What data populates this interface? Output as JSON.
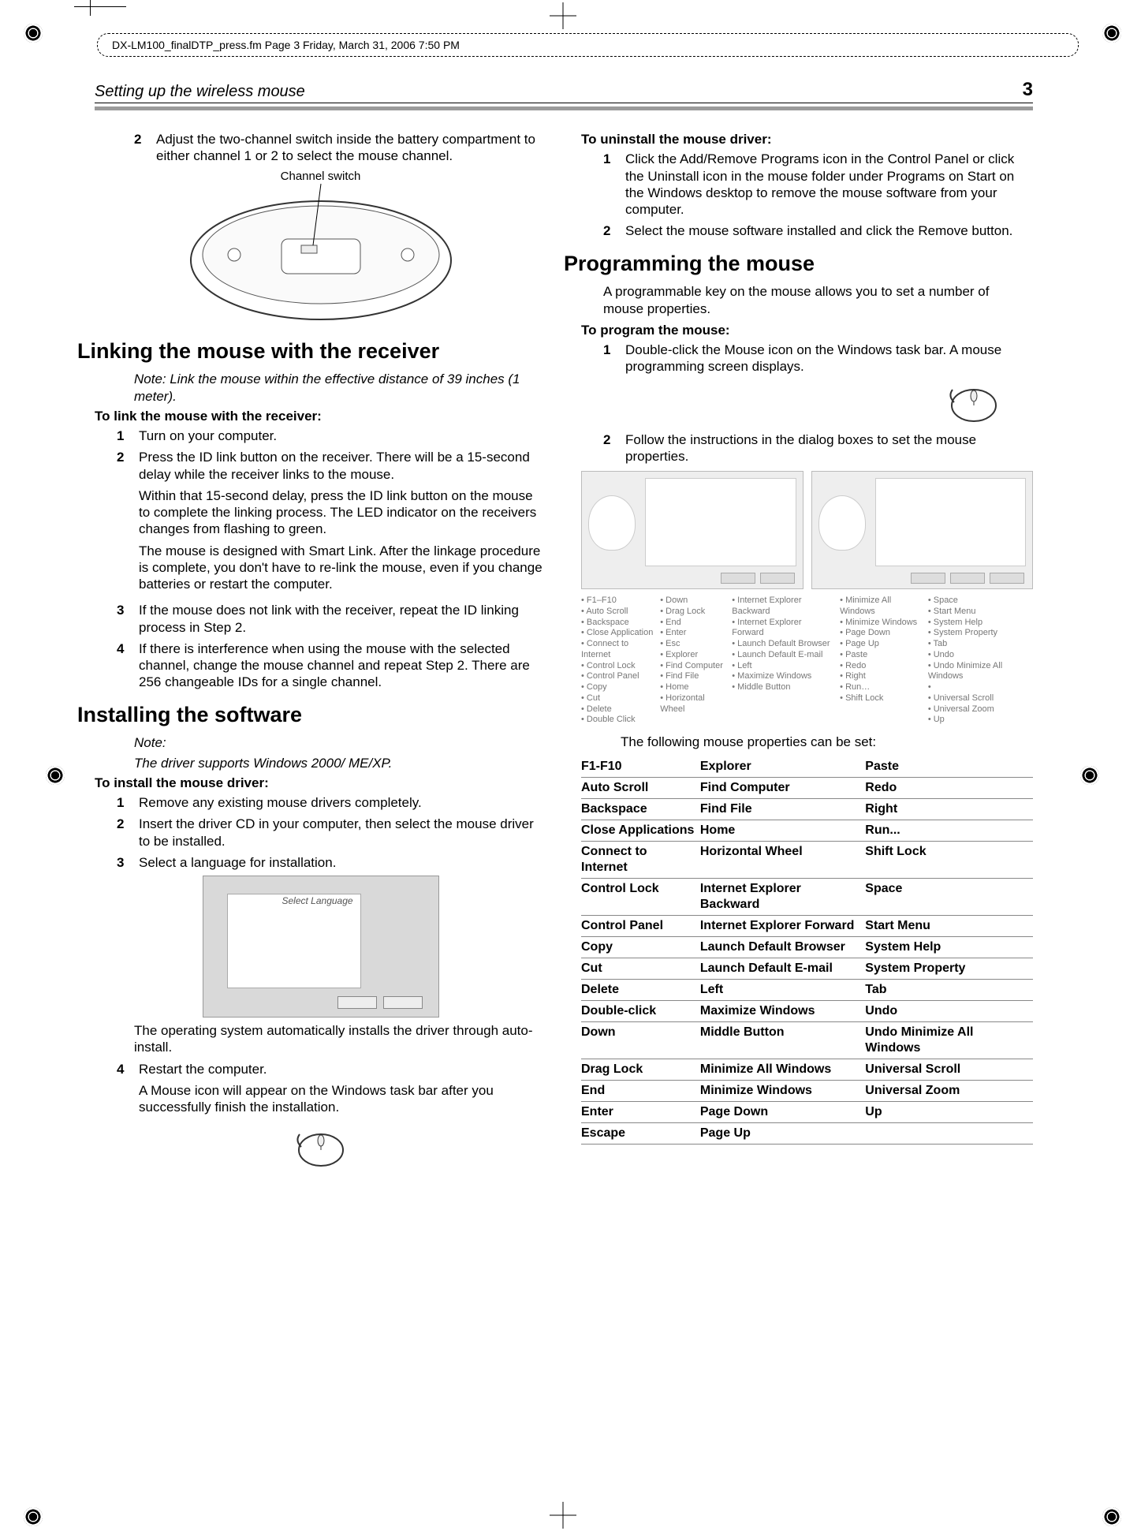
{
  "print_header": "DX-LM100_finalDTP_press.fm  Page 3  Friday, March 31, 2006  7:50 PM",
  "running_title": "Setting up the wireless mouse",
  "page_number": "3",
  "left": {
    "step2": "Adjust the two-channel switch inside the battery compartment to either channel 1 or 2 to select the mouse channel.",
    "channel_switch_label": "Channel switch",
    "h_link": "Linking the mouse with the receiver",
    "link_note": "Note: Link the mouse within the effective distance of 39 inches (1 meter).",
    "link_lead": "To link the mouse with the receiver:",
    "link_steps": {
      "1": "Turn on your computer.",
      "2a": "Press the ID link button on the receiver. There will be a 15-second delay while the receiver links to the mouse.",
      "2b": "Within that 15-second delay, press the ID link button on the mouse to complete the linking process. The LED indicator on the receivers changes from flashing to green.",
      "2c": "The mouse is designed with Smart Link. After the linkage procedure is complete, you don't have to re-link the mouse, even if you change batteries or restart the computer.",
      "3": "If the mouse does not link with the receiver, repeat the ID linking process in Step 2.",
      "4": "If there is interference when using the mouse with the selected channel, change the mouse channel and repeat Step 2. There are 256 changeable IDs for a single channel."
    },
    "h_install": "Installing the software",
    "install_note1": "Note:",
    "install_note2": "The driver supports Windows 2000/ ME/XP.",
    "install_lead": "To install the mouse driver:",
    "install_steps": {
      "1": "Remove any existing mouse drivers completely.",
      "2": "Insert the driver CD in your computer, then select the mouse driver to be installed.",
      "3": "Select a language for installation."
    },
    "install_after": "The operating system automatically installs the driver through auto-install.",
    "install_4a": "Restart the computer.",
    "install_4b": "A Mouse icon will appear on the Windows task bar after you successfully finish the installation."
  },
  "right": {
    "uninstall_lead": "To uninstall the mouse driver:",
    "uninstall_1": "Click the Add/Remove Programs icon in the Control Panel or click the Uninstall icon in the mouse folder under Programs on Start on the Windows desktop to remove the mouse software from your computer.",
    "uninstall_2": "Select the mouse software installed and click the Remove button.",
    "h_prog": "Programming the mouse",
    "prog_intro": "A programmable key on the mouse allows you to set a number of mouse properties.",
    "prog_lead": "To program the mouse:",
    "prog_1": "Double-click the Mouse icon on the Windows task bar. A mouse programming screen displays.",
    "prog_2": "Follow the instructions in the dialog boxes to set the mouse properties.",
    "bullet_cols": [
      [
        "F1–F10",
        "Auto Scroll",
        "Backspace",
        "Close Application",
        "Connect to Internet",
        "Control Lock",
        "Control Panel",
        "Copy",
        "Cut",
        "Delete",
        "Double Click"
      ],
      [
        "Down",
        "Drag Lock",
        "End",
        "Enter",
        "Esc",
        "Explorer",
        "Find Computer",
        "Find File",
        "Home",
        "Horizontal Wheel"
      ],
      [
        "Internet Explorer Backward",
        "Internet Explorer Forward",
        "Launch Default Browser",
        "Launch Default E-mail",
        "Left",
        "Maximize Windows",
        "Middle Button"
      ],
      [
        "Minimize All Windows",
        "Minimize Windows",
        "Page Down",
        "Page Up",
        "Paste",
        "Redo",
        "Right",
        "Run…",
        "Shift Lock"
      ],
      [
        "Space",
        "Start Menu",
        "System Help",
        "System Property",
        "Tab",
        "Undo",
        "Undo Minimize All Windows",
        "",
        "Universal Scroll",
        "Universal Zoom",
        "Up"
      ]
    ],
    "table_intro": "The following mouse properties can be set:",
    "table_rows": [
      [
        "F1-F10",
        "Explorer",
        "Paste"
      ],
      [
        "Auto Scroll",
        "Find Computer",
        "Redo"
      ],
      [
        "Backspace",
        "Find File",
        "Right"
      ],
      [
        "Close Applications",
        "Home",
        "Run..."
      ],
      [
        "Connect to Internet",
        "Horizontal Wheel",
        "Shift Lock"
      ],
      [
        "Control Lock",
        "Internet Explorer Backward",
        "Space"
      ],
      [
        "Control Panel",
        "Internet Explorer Forward",
        "Start Menu"
      ],
      [
        "Copy",
        "Launch Default Browser",
        "System Help"
      ],
      [
        "Cut",
        "Launch Default E-mail",
        "System Property"
      ],
      [
        "Delete",
        "Left",
        "Tab"
      ],
      [
        "Double-click",
        "Maximize Windows",
        "Undo"
      ],
      [
        "Down",
        "Middle Button",
        "Undo Minimize All Windows"
      ],
      [
        "Drag Lock",
        "Minimize All Windows",
        "Universal Scroll"
      ],
      [
        "End",
        "Minimize Windows",
        "Universal Zoom"
      ],
      [
        "Enter",
        "Page Down",
        "Up"
      ],
      [
        "Escape",
        "Page Up",
        ""
      ]
    ]
  },
  "colors": {
    "rule_gray": "#9a9a9a",
    "table_border": "#888888"
  }
}
